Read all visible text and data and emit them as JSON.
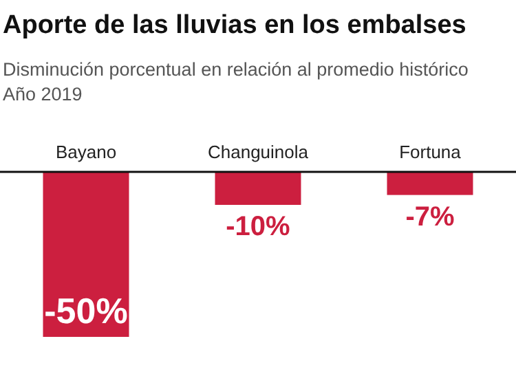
{
  "chart_data": {
    "type": "bar",
    "title": "Aporte de las lluvias en los embalses",
    "subtitle": "Disminución porcentual en relación al promedio histórico\nAño 2019",
    "categories": [
      "Bayano",
      "Changuinola",
      "Fortuna"
    ],
    "values": [
      -50,
      -10,
      -7
    ],
    "value_labels": [
      "-50%",
      "-10%",
      "-7%"
    ],
    "color": "#cc1f3f"
  }
}
